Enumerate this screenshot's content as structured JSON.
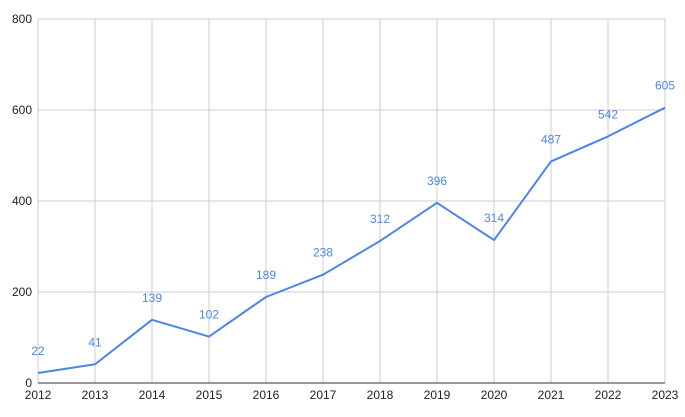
{
  "chart_data": {
    "type": "line",
    "title": "",
    "xlabel": "",
    "ylabel": "",
    "x": [
      "2012",
      "2013",
      "2014",
      "2015",
      "2016",
      "2017",
      "2018",
      "2019",
      "2020",
      "2021",
      "2022",
      "2023"
    ],
    "series": [
      {
        "values": [
          22,
          41,
          139,
          102,
          189,
          238,
          312,
          396,
          314,
          487,
          542,
          605
        ]
      }
    ],
    "ylim": [
      0,
      800
    ],
    "yticks": [
      0,
      200,
      400,
      600,
      800
    ],
    "grid": true,
    "legend": "none",
    "data_labels": true,
    "colors": {
      "line": "#4a86e8",
      "label": "#4a86e8",
      "grid": "#cccccc",
      "axis": "#333333"
    }
  }
}
